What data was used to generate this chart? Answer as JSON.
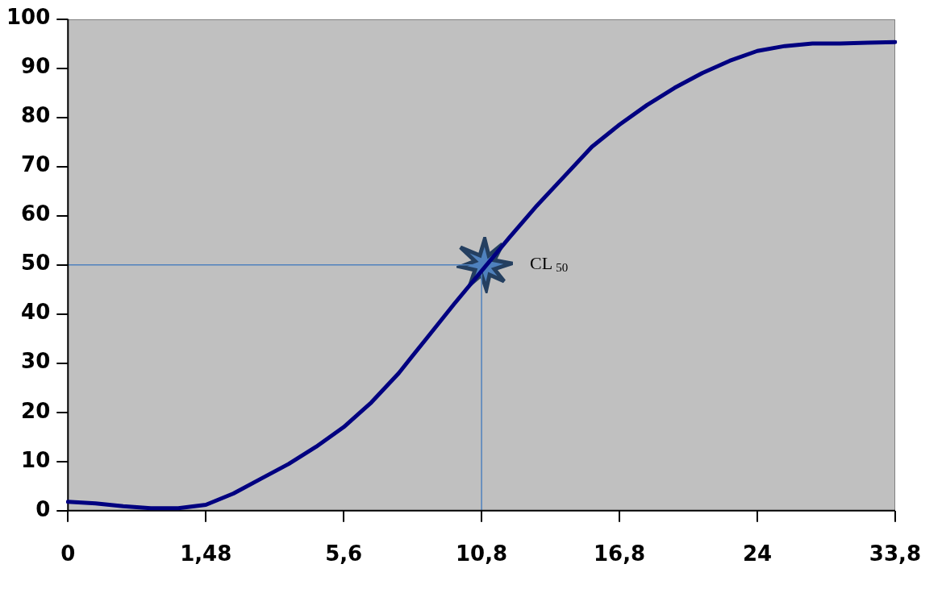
{
  "chart_data": {
    "type": "line",
    "categories": [
      "0",
      null,
      null,
      null,
      null,
      "1,48",
      null,
      null,
      null,
      null,
      "5,6",
      null,
      null,
      null,
      null,
      "10,8",
      null,
      null,
      null,
      null,
      "16,8",
      null,
      null,
      null,
      null,
      "24",
      null,
      null,
      null,
      null,
      "33,8"
    ],
    "series": [
      {
        "color": "#000080",
        "values": [
          1.8,
          1.5,
          0.9,
          0.5,
          0.5,
          1.2,
          3.5,
          6.5,
          9.5,
          13,
          17,
          22,
          28,
          35,
          42,
          null,
          55.5,
          62,
          68,
          74,
          78.5,
          82.5,
          86,
          89,
          91.5,
          93.5,
          94.5,
          95,
          95,
          95.2,
          95.3
        ]
      }
    ],
    "ylim": [
      0,
      100
    ],
    "yticks": [
      0,
      10,
      20,
      30,
      40,
      50,
      60,
      70,
      80,
      90,
      100
    ],
    "grid": false,
    "legend": false,
    "marker": "none",
    "line_style": "solid",
    "ref_lines": [
      {
        "axis": "y",
        "value": 50,
        "color": "#4f81bd"
      },
      {
        "axis": "x",
        "value": "10,8",
        "color": "#4f81bd"
      }
    ],
    "annotations": [
      {
        "text": "CL$_{50}$",
        "x": "10,8",
        "y": 50
      }
    ]
  }
}
